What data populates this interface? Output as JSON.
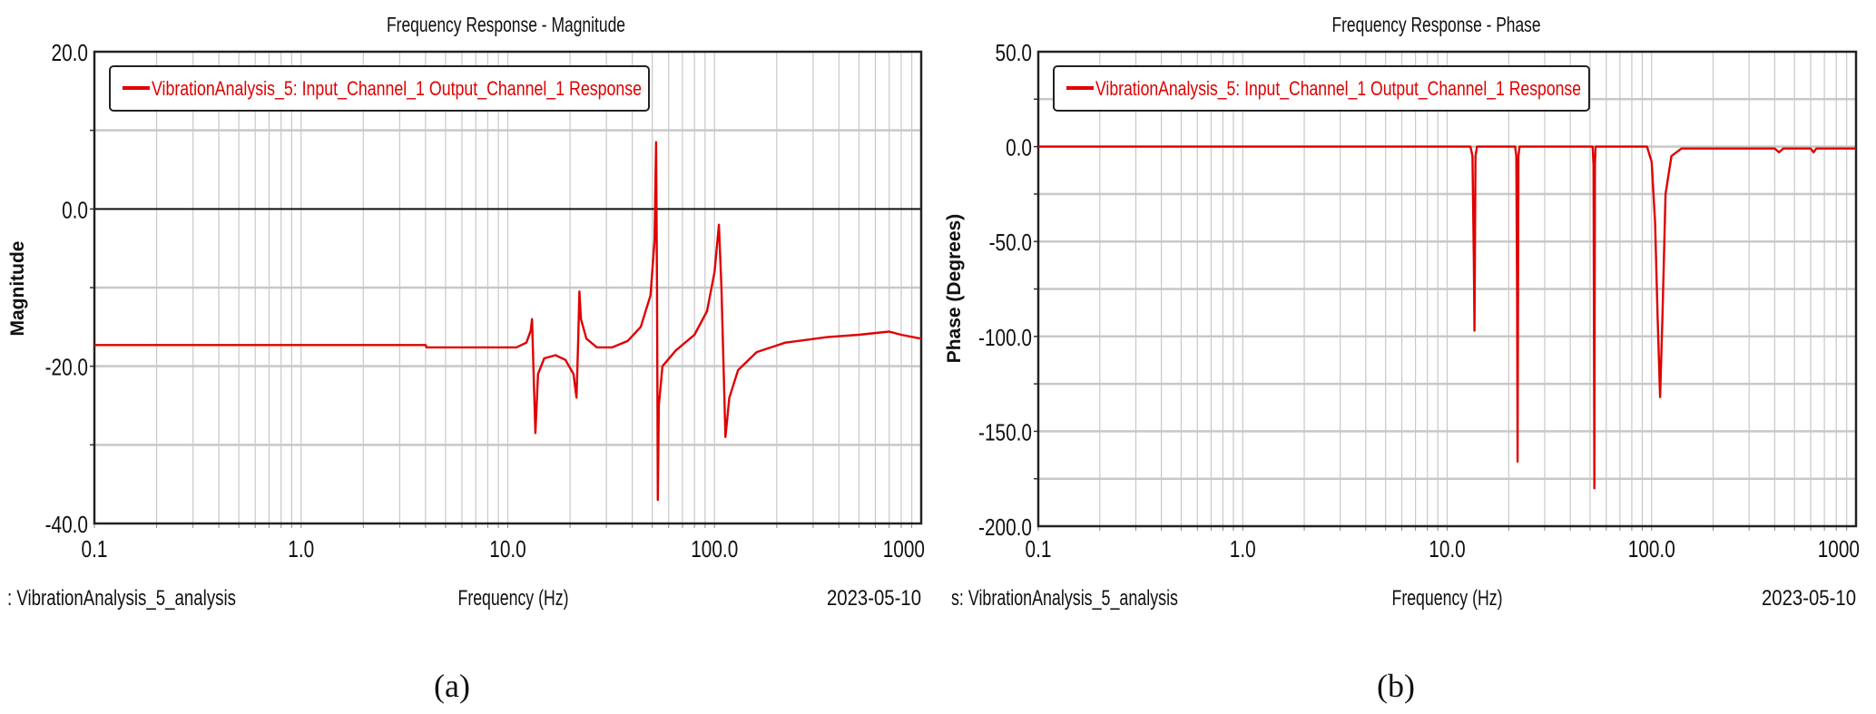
{
  "chart_data": [
    {
      "type": "line",
      "panel_caption": "(a)",
      "title": "Frequency Response - Magnitude",
      "xlabel": "Frequency (Hz)",
      "ylabel": "Magnitude",
      "xscale": "log",
      "xlim": [
        0.1,
        1000
      ],
      "ylim": [
        -40,
        20
      ],
      "yticks": [
        20,
        0,
        -20,
        -40
      ],
      "ytick_labels": [
        "20.0",
        "0.0",
        "-20.0",
        "-40.0"
      ],
      "ygrid_step": 10,
      "zero_line": true,
      "xticks": [
        0.1,
        1,
        10,
        100,
        1000
      ],
      "xtick_labels": [
        "0.1",
        "1.0",
        "10.0",
        "100.0",
        "1000"
      ],
      "grid": true,
      "legend": {
        "placement": "top-left",
        "entries": [
          "VibrationAnalysis_5: Input_Channel_1 Output_Channel_1 Response"
        ]
      },
      "footer_left": ": VibrationAnalysis_5_analysis",
      "footer_right": "2023-05-10",
      "series": [
        {
          "name": "VibrationAnalysis_5: Input_Channel_1 Output_Channel_1 Response",
          "color": "#e00000",
          "points": [
            [
              0.1,
              -17.3
            ],
            [
              4,
              -17.3
            ],
            [
              4.05,
              -17.6
            ],
            [
              11,
              -17.6
            ],
            [
              12.3,
              -17
            ],
            [
              12.9,
              -15.5
            ],
            [
              13.1,
              -14
            ],
            [
              13.3,
              -20
            ],
            [
              13.6,
              -28.5
            ],
            [
              14.0,
              -21
            ],
            [
              15,
              -19
            ],
            [
              17,
              -18.6
            ],
            [
              19,
              -19.2
            ],
            [
              20.8,
              -21
            ],
            [
              21.5,
              -24
            ],
            [
              21.9,
              -17
            ],
            [
              22.2,
              -10.5
            ],
            [
              22.6,
              -14
            ],
            [
              24,
              -16.5
            ],
            [
              27,
              -17.6
            ],
            [
              32,
              -17.6
            ],
            [
              38,
              -16.8
            ],
            [
              44,
              -15
            ],
            [
              49,
              -11
            ],
            [
              51.3,
              -4
            ],
            [
              52.2,
              8.5
            ],
            [
              52.7,
              -10
            ],
            [
              53.2,
              -37
            ],
            [
              53.8,
              -25
            ],
            [
              56,
              -20
            ],
            [
              65,
              -18
            ],
            [
              80,
              -16
            ],
            [
              92,
              -13
            ],
            [
              100,
              -8
            ],
            [
              105,
              -2
            ],
            [
              108,
              -10
            ],
            [
              113,
              -29
            ],
            [
              118,
              -24
            ],
            [
              130,
              -20.5
            ],
            [
              160,
              -18.2
            ],
            [
              220,
              -17
            ],
            [
              350,
              -16.3
            ],
            [
              500,
              -16
            ],
            [
              700,
              -15.6
            ],
            [
              800,
              -16
            ],
            [
              1000,
              -16.5
            ]
          ]
        }
      ]
    },
    {
      "type": "line",
      "panel_caption": "(b)",
      "title": "Frequency Response - Phase",
      "xlabel": "Frequency (Hz)",
      "ylabel": "Phase (Degrees)",
      "xscale": "log",
      "xlim": [
        0.1,
        1000
      ],
      "ylim": [
        -200,
        50
      ],
      "yticks": [
        50,
        0,
        -50,
        -100,
        -150,
        -200
      ],
      "ytick_labels": [
        "50.0",
        "0.0",
        "-50.0",
        "-100.0",
        "-150.0",
        "-200.0"
      ],
      "ygrid_step": 25,
      "zero_line": false,
      "xticks": [
        0.1,
        1,
        10,
        100,
        1000
      ],
      "xtick_labels": [
        "0.1",
        "1.0",
        "10.0",
        "100.0",
        "1000"
      ],
      "grid": true,
      "legend": {
        "placement": "top-left",
        "entries": [
          "VibrationAnalysis_5: Input_Channel_1 Output_Channel_1 Response"
        ]
      },
      "footer_left": "s: VibrationAnalysis_5_analysis",
      "footer_right": "2023-05-10",
      "series": [
        {
          "name": "VibrationAnalysis_5: Input_Channel_1 Output_Channel_1 Response",
          "color": "#e00000",
          "points": [
            [
              0.1,
              0
            ],
            [
              13.0,
              0
            ],
            [
              13.3,
              -5
            ],
            [
              13.5,
              -60
            ],
            [
              13.6,
              -97
            ],
            [
              13.75,
              -5
            ],
            [
              14,
              0
            ],
            [
              21.5,
              0
            ],
            [
              21.8,
              -5
            ],
            [
              22.0,
              -80
            ],
            [
              22.1,
              -166
            ],
            [
              22.3,
              -5
            ],
            [
              22.6,
              0
            ],
            [
              51.5,
              0
            ],
            [
              52,
              -10
            ],
            [
              52.3,
              -100
            ],
            [
              52.5,
              -180
            ],
            [
              52.8,
              -10
            ],
            [
              53.2,
              0
            ],
            [
              95,
              0
            ],
            [
              100,
              -8
            ],
            [
              104,
              -40
            ],
            [
              107,
              -90
            ],
            [
              110,
              -132
            ],
            [
              113,
              -90
            ],
            [
              117,
              -25
            ],
            [
              125,
              -5
            ],
            [
              140,
              -1
            ],
            [
              400,
              -1
            ],
            [
              420,
              -3
            ],
            [
              440,
              -1
            ],
            [
              600,
              -1
            ],
            [
              620,
              -3
            ],
            [
              640,
              -1
            ],
            [
              700,
              -1
            ],
            [
              1000,
              -1
            ]
          ]
        }
      ]
    }
  ]
}
